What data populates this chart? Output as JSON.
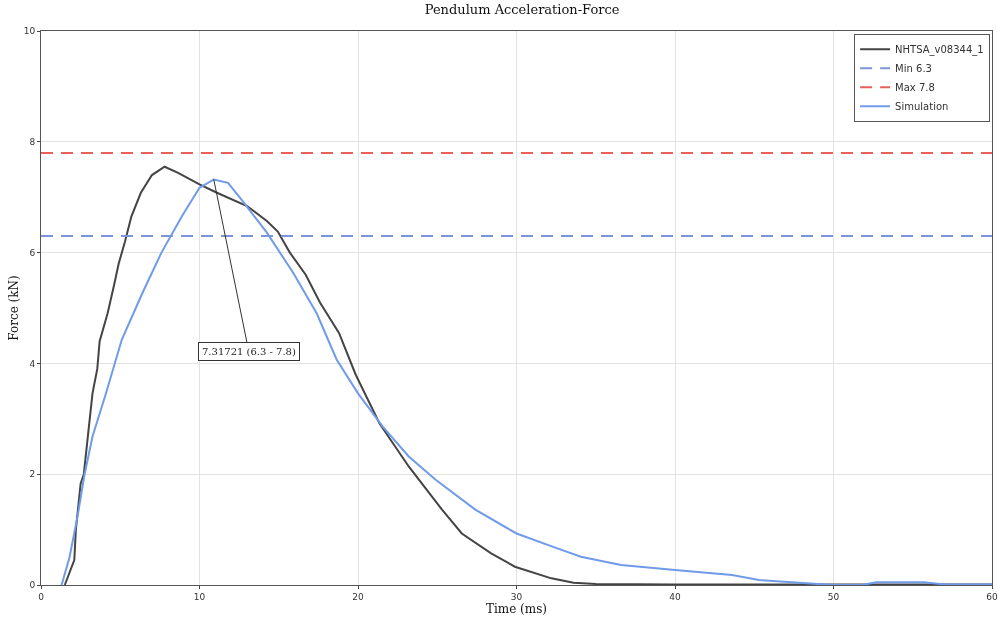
{
  "chart_data": {
    "type": "line",
    "title": "Pendulum Acceleration-Force",
    "xlabel": "Time (ms)",
    "ylabel": "Force (kN)",
    "xlim": [
      0,
      60
    ],
    "xticks": [
      0,
      10,
      20,
      30,
      40,
      50,
      60
    ],
    "ylim": [
      0,
      10
    ],
    "yticks": [
      0,
      2,
      4,
      6,
      8,
      10
    ],
    "grid": true,
    "legend": "top right",
    "line_style": "solid",
    "marker": "none",
    "series": [
      {
        "name": "NHTSA_v08344_1",
        "color": "#444444",
        "x": [
          1.5,
          2.1,
          2.2,
          2.5,
          2.7,
          3.0,
          3.25,
          3.55,
          3.7,
          4.2,
          4.6,
          4.9,
          5.3,
          5.7,
          6.3,
          7.0,
          7.8,
          8.65,
          10,
          11.1,
          13,
          14.25,
          14.94,
          15.7,
          16.7,
          17.6,
          18.8,
          19.85,
          21.35,
          23.2,
          25.3,
          26.55,
          28.4,
          29.9,
          32.2,
          33.6,
          35,
          40,
          50,
          60
        ],
        "values": [
          0,
          0.45,
          1.0,
          1.83,
          2.0,
          2.8,
          3.46,
          3.9,
          4.4,
          4.9,
          5.4,
          5.8,
          6.2,
          6.65,
          7.08,
          7.4,
          7.55,
          7.44,
          7.23,
          7.08,
          6.84,
          6.57,
          6.38,
          6.0,
          5.6,
          5.1,
          4.55,
          3.8,
          2.92,
          2.14,
          1.36,
          0.93,
          0.57,
          0.33,
          0.12,
          0.04,
          0.02,
          0.01,
          0.01,
          0.01
        ]
      },
      {
        "name": "Simulation",
        "color": "#6f9be8",
        "x": [
          1.3,
          1.8,
          2.3,
          2.75,
          3.25,
          4.1,
          5.1,
          6.4,
          7.6,
          8.9,
          10,
          10.9,
          11.8,
          12.8,
          14.25,
          15.9,
          17.4,
          18.65,
          20,
          21.56,
          23.2,
          24.9,
          27.4,
          30,
          32.4,
          34.06,
          36.6,
          40,
          43.6,
          45.3,
          49,
          50,
          51.8,
          52.7,
          55.7,
          57,
          60
        ],
        "values": [
          0,
          0.5,
          1.23,
          2.0,
          2.68,
          3.46,
          4.43,
          5.27,
          6.0,
          6.66,
          7.17,
          7.32,
          7.26,
          6.9,
          6.36,
          5.64,
          4.9,
          4.07,
          3.46,
          2.86,
          2.32,
          1.9,
          1.36,
          0.93,
          0.68,
          0.51,
          0.36,
          0.27,
          0.18,
          0.09,
          0.02,
          0,
          0,
          0.05,
          0.05,
          0.01,
          0.01
        ]
      }
    ],
    "ref_lines": [
      {
        "axis": "y",
        "value": 6.3,
        "label": "Min 6.3",
        "color": "#7b96d8",
        "line_style": "dashed"
      },
      {
        "axis": "y",
        "value": 7.8,
        "label": "Max 7.8",
        "color": "#e8605a",
        "line_style": "dashed"
      }
    ],
    "annotations": [
      {
        "text": "7.31721 (6.3 - 7.8)",
        "x": 10.9,
        "y": 7.32
      }
    ]
  }
}
